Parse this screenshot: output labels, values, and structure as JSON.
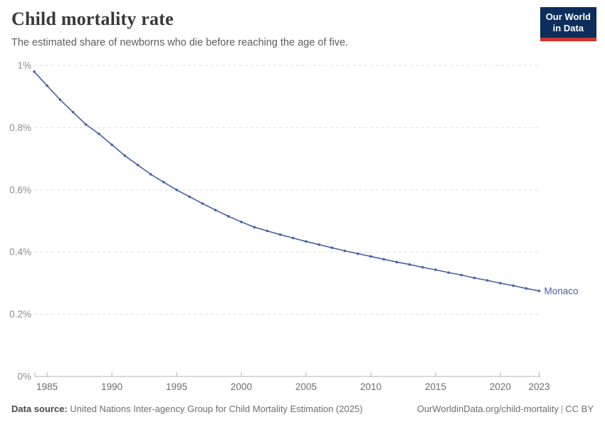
{
  "header": {
    "title": "Child mortality rate",
    "subtitle": "The estimated share of newborns who die before reaching the age of five.",
    "logo": {
      "line1": "Our World",
      "line2": "in Data"
    }
  },
  "colors": {
    "line": "#4662a2",
    "entity_label": "#4662a2",
    "logo_background": "#0d2e5b",
    "logo_bar": "#cd3731"
  },
  "chart_data": {
    "type": "line",
    "title": "Child mortality rate",
    "xlabel": "",
    "ylabel": "",
    "xlim": [
      1984,
      2023
    ],
    "ylim": [
      0,
      1
    ],
    "grid": "horizontal-dashed",
    "legend_position": "end-of-line-label",
    "x_ticks": [
      {
        "value": 1985,
        "label": "1985"
      },
      {
        "value": 1990,
        "label": "1990"
      },
      {
        "value": 1995,
        "label": "1995"
      },
      {
        "value": 2000,
        "label": "2000"
      },
      {
        "value": 2005,
        "label": "2005"
      },
      {
        "value": 2010,
        "label": "2010"
      },
      {
        "value": 2015,
        "label": "2015"
      },
      {
        "value": 2020,
        "label": "2020"
      },
      {
        "value": 2023,
        "label": "2023"
      }
    ],
    "y_ticks": [
      {
        "value": 0,
        "label": "0%"
      },
      {
        "value": 0.2,
        "label": "0.2%"
      },
      {
        "value": 0.4,
        "label": "0.4%"
      },
      {
        "value": 0.6,
        "label": "0.6%"
      },
      {
        "value": 0.8,
        "label": "0.8%"
      },
      {
        "value": 1,
        "label": "1%"
      }
    ],
    "series": [
      {
        "name": "Monaco",
        "unit": "%",
        "years": [
          1984,
          1985,
          1986,
          1987,
          1988,
          1989,
          1990,
          1991,
          1992,
          1993,
          1994,
          1995,
          1996,
          1997,
          1998,
          1999,
          2000,
          2001,
          2002,
          2003,
          2004,
          2005,
          2006,
          2007,
          2008,
          2009,
          2010,
          2011,
          2012,
          2013,
          2014,
          2015,
          2016,
          2017,
          2018,
          2019,
          2020,
          2021,
          2022,
          2023
        ],
        "values": [
          0.98,
          0.935,
          0.89,
          0.85,
          0.81,
          0.78,
          0.745,
          0.71,
          0.68,
          0.65,
          0.625,
          0.6,
          0.578,
          0.556,
          0.535,
          0.515,
          0.497,
          0.48,
          0.468,
          0.456,
          0.445,
          0.434,
          0.424,
          0.414,
          0.404,
          0.395,
          0.386,
          0.377,
          0.368,
          0.36,
          0.351,
          0.343,
          0.334,
          0.326,
          0.317,
          0.309,
          0.3,
          0.292,
          0.283,
          0.275
        ]
      }
    ]
  },
  "footer": {
    "data_source_label": "Data source:",
    "data_source": "United Nations Inter-agency Group for Child Mortality Estimation (2025)",
    "link": "OurWorldinData.org/child-mortality",
    "separator": "|",
    "license": "CC BY"
  }
}
